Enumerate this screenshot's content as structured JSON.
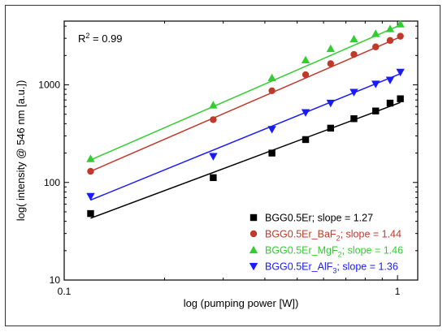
{
  "chart_data": {
    "type": "scatter",
    "xlabel": "log (pumping power [W])",
    "ylabel": "log( intensity @ 546 nm [a.u.])",
    "xscale": "log",
    "yscale": "log",
    "xlim": [
      0.1,
      1.15
    ],
    "ylim": [
      10,
      4500
    ],
    "xticks": [
      0.1,
      1
    ],
    "xtick_labels": [
      "0.1",
      "1"
    ],
    "yticks": [
      10,
      100,
      1000
    ],
    "ytick_labels": [
      "10",
      "100",
      "1000"
    ],
    "grid": false,
    "legend_position": "bottom-right",
    "annotation": {
      "r2_label": "R",
      "r2_sup": "2",
      "r2_value": " = 0.99"
    },
    "series": [
      {
        "name": "BGG0.5Er",
        "legend_label": {
          "prefix": "BGG0.5Er; slope = 1.27",
          "sub": "",
          "suffix": ""
        },
        "color": "#000000",
        "marker": "square",
        "x": [
          0.12,
          0.28,
          0.42,
          0.53,
          0.63,
          0.74,
          0.86,
          0.95,
          1.02
        ],
        "y": [
          48,
          112,
          200,
          275,
          360,
          450,
          540,
          650,
          720
        ],
        "fit": {
          "x": [
            0.12,
            1.02
          ],
          "y": [
            43,
            660
          ]
        }
      },
      {
        "name": "BGG0.5Er_BaF2",
        "legend_label": {
          "prefix": "BGG0.5Er_BaF",
          "sub": "2",
          "suffix": "; slope = 1.44"
        },
        "color": "#c0392b",
        "marker": "circle",
        "x": [
          0.12,
          0.28,
          0.42,
          0.53,
          0.63,
          0.74,
          0.86,
          0.95,
          1.02
        ],
        "y": [
          130,
          440,
          870,
          1270,
          1650,
          2050,
          2450,
          2850,
          3150
        ],
        "fit": {
          "x": [
            0.12,
            1.02
          ],
          "y": [
            130,
            3100
          ]
        }
      },
      {
        "name": "BGG0.5Er_MgF2",
        "legend_label": {
          "prefix": "BGG0.5Er_MgF",
          "sub": "2",
          "suffix": "; slope = 1.46"
        },
        "color": "#33cc33",
        "marker": "triangle-up",
        "x": [
          0.12,
          0.28,
          0.42,
          0.53,
          0.63,
          0.74,
          0.86,
          0.95,
          1.02
        ],
        "y": [
          175,
          620,
          1180,
          1800,
          2350,
          2950,
          3350,
          3750,
          4200
        ],
        "fit": {
          "x": [
            0.12,
            1.02
          ],
          "y": [
            170,
            4100
          ]
        }
      },
      {
        "name": "BGG0.5Er_AlF3",
        "legend_label": {
          "prefix": "BGG0.5Er_AlF",
          "sub": "3",
          "suffix": "; slope = 1.36"
        },
        "color": "#1a1aff",
        "marker": "triangle-down",
        "x": [
          0.12,
          0.28,
          0.42,
          0.53,
          0.63,
          0.74,
          0.86,
          0.95,
          1.02
        ],
        "y": [
          72,
          185,
          350,
          520,
          650,
          840,
          1020,
          1120,
          1350
        ],
        "fit": {
          "x": [
            0.12,
            1.02
          ],
          "y": [
            66,
            1300
          ]
        }
      }
    ]
  }
}
